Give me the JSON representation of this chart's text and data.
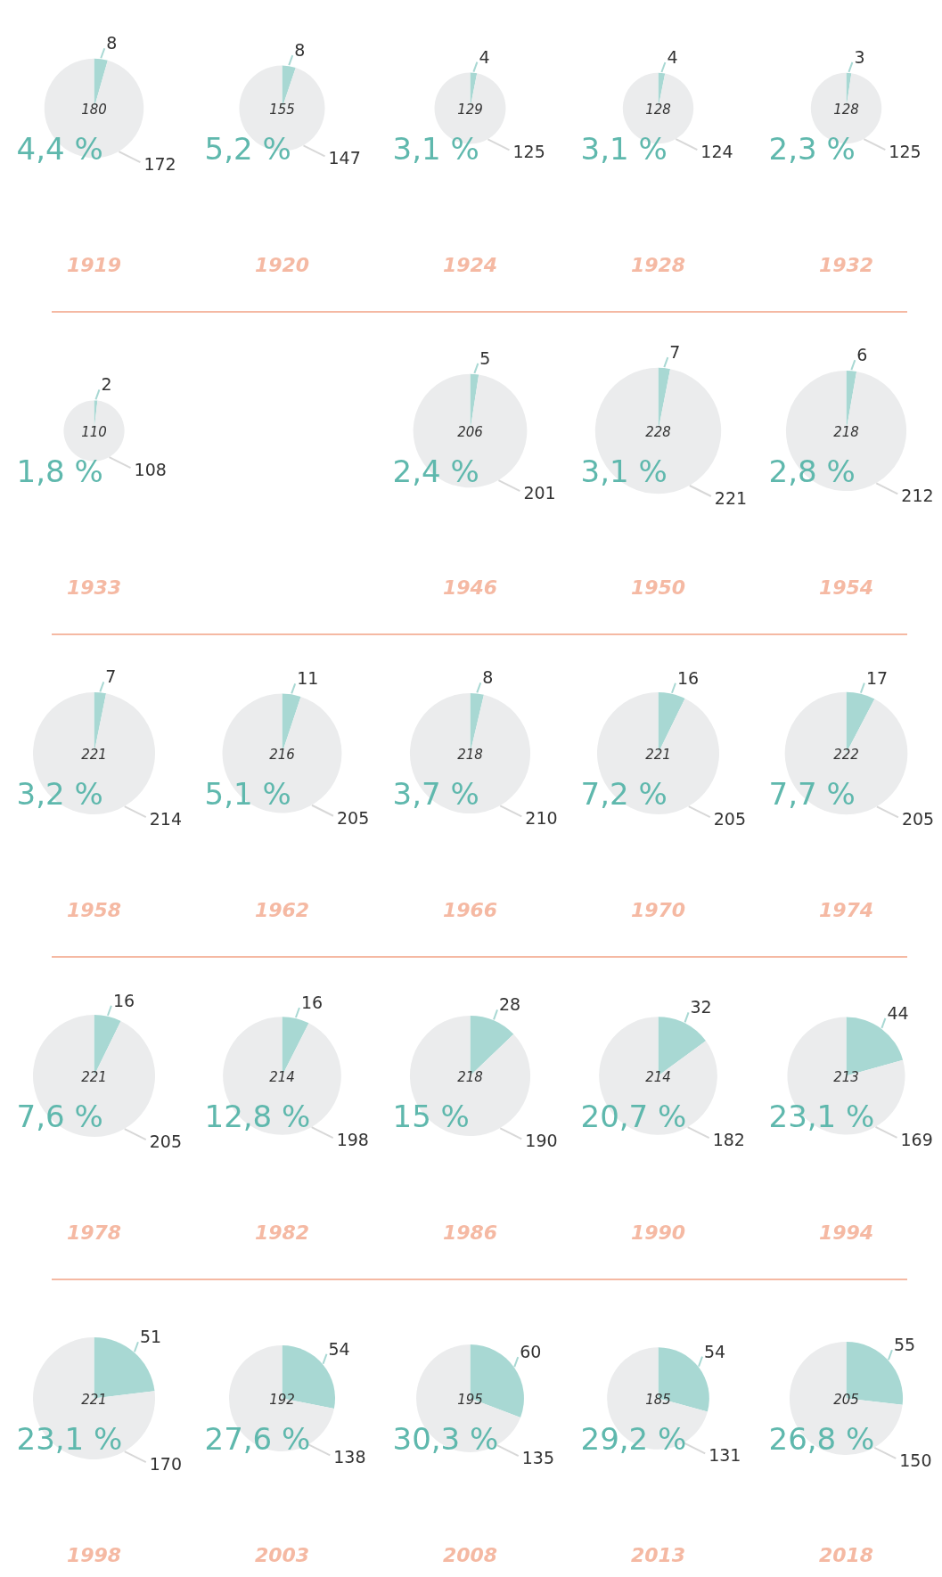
{
  "chart_data": [
    {
      "type": "pie",
      "title": "1919",
      "categories": [
        null,
        null
      ],
      "values": [
        8,
        172
      ],
      "colors": [
        "#a8d8d3",
        "#ebeced"
      ],
      "data_labels": true,
      "annotations": [
        "180",
        "4,4 %"
      ]
    },
    {
      "type": "pie",
      "title": "1920",
      "categories": [
        null,
        null
      ],
      "values": [
        8,
        147
      ],
      "colors": [
        "#a8d8d3",
        "#ebeced"
      ],
      "data_labels": true,
      "annotations": [
        "155",
        "5,2 %"
      ]
    },
    {
      "type": "pie",
      "title": "1924",
      "categories": [
        null,
        null
      ],
      "values": [
        4,
        125
      ],
      "colors": [
        "#a8d8d3",
        "#ebeced"
      ],
      "data_labels": true,
      "annotations": [
        "129",
        "3,1 %"
      ]
    },
    {
      "type": "pie",
      "title": "1928",
      "categories": [
        null,
        null
      ],
      "values": [
        4,
        124
      ],
      "colors": [
        "#a8d8d3",
        "#ebeced"
      ],
      "data_labels": true,
      "annotations": [
        "128",
        "3,1 %"
      ]
    },
    {
      "type": "pie",
      "title": "1932",
      "categories": [
        null,
        null
      ],
      "values": [
        3,
        125
      ],
      "colors": [
        "#a8d8d3",
        "#ebeced"
      ],
      "data_labels": true,
      "annotations": [
        "128",
        "2,3 %"
      ]
    },
    {
      "type": "pie",
      "title": "1933",
      "categories": [
        null,
        null
      ],
      "values": [
        2,
        108
      ],
      "colors": [
        "#a8d8d3",
        "#ebeced"
      ],
      "data_labels": true,
      "annotations": [
        "110",
        "1,8 %"
      ]
    },
    {
      "type": "pie",
      "title": "1946",
      "categories": [
        null,
        null
      ],
      "values": [
        5,
        201
      ],
      "colors": [
        "#a8d8d3",
        "#ebeced"
      ],
      "data_labels": true,
      "annotations": [
        "206",
        "2,4 %"
      ]
    },
    {
      "type": "pie",
      "title": "1950",
      "categories": [
        null,
        null
      ],
      "values": [
        7,
        221
      ],
      "colors": [
        "#a8d8d3",
        "#ebeced"
      ],
      "data_labels": true,
      "annotations": [
        "228",
        "3,1 %"
      ]
    },
    {
      "type": "pie",
      "title": "1954",
      "categories": [
        null,
        null
      ],
      "values": [
        6,
        212
      ],
      "colors": [
        "#a8d8d3",
        "#ebeced"
      ],
      "data_labels": true,
      "annotations": [
        "218",
        "2,8 %"
      ]
    },
    {
      "type": "pie",
      "title": "1958",
      "categories": [
        null,
        null
      ],
      "values": [
        7,
        214
      ],
      "colors": [
        "#a8d8d3",
        "#ebeced"
      ],
      "data_labels": true,
      "annotations": [
        "221",
        "3,2 %"
      ]
    },
    {
      "type": "pie",
      "title": "1962",
      "categories": [
        null,
        null
      ],
      "values": [
        11,
        205
      ],
      "colors": [
        "#a8d8d3",
        "#ebeced"
      ],
      "data_labels": true,
      "annotations": [
        "216",
        "5,1 %"
      ]
    },
    {
      "type": "pie",
      "title": "1966",
      "categories": [
        null,
        null
      ],
      "values": [
        8,
        210
      ],
      "colors": [
        "#a8d8d3",
        "#ebeced"
      ],
      "data_labels": true,
      "annotations": [
        "218",
        "3,7 %"
      ]
    },
    {
      "type": "pie",
      "title": "1970",
      "categories": [
        null,
        null
      ],
      "values": [
        16,
        205
      ],
      "colors": [
        "#a8d8d3",
        "#ebeced"
      ],
      "data_labels": true,
      "annotations": [
        "221",
        "7,2 %"
      ]
    },
    {
      "type": "pie",
      "title": "1974",
      "categories": [
        null,
        null
      ],
      "values": [
        17,
        205
      ],
      "colors": [
        "#a8d8d3",
        "#ebeced"
      ],
      "data_labels": true,
      "annotations": [
        "222",
        "7,7 %"
      ]
    },
    {
      "type": "pie",
      "title": "1978",
      "categories": [
        null,
        null
      ],
      "values": [
        16,
        205
      ],
      "colors": [
        "#a8d8d3",
        "#ebeced"
      ],
      "data_labels": true,
      "annotations": [
        "221",
        "7,6 %"
      ]
    },
    {
      "type": "pie",
      "title": "1982",
      "categories": [
        null,
        null
      ],
      "values": [
        16,
        198
      ],
      "colors": [
        "#a8d8d3",
        "#ebeced"
      ],
      "data_labels": true,
      "annotations": [
        "214",
        "12,8 %"
      ]
    },
    {
      "type": "pie",
      "title": "1986",
      "categories": [
        null,
        null
      ],
      "values": [
        28,
        190
      ],
      "colors": [
        "#a8d8d3",
        "#ebeced"
      ],
      "data_labels": true,
      "annotations": [
        "218",
        "15 %"
      ]
    },
    {
      "type": "pie",
      "title": "1990",
      "categories": [
        null,
        null
      ],
      "values": [
        32,
        182
      ],
      "colors": [
        "#a8d8d3",
        "#ebeced"
      ],
      "data_labels": true,
      "annotations": [
        "214",
        "20,7 %"
      ]
    },
    {
      "type": "pie",
      "title": "1994",
      "categories": [
        null,
        null
      ],
      "values": [
        44,
        169
      ],
      "colors": [
        "#a8d8d3",
        "#ebeced"
      ],
      "data_labels": true,
      "annotations": [
        "213",
        "23,1 %"
      ]
    },
    {
      "type": "pie",
      "title": "1998",
      "categories": [
        null,
        null
      ],
      "values": [
        51,
        170
      ],
      "colors": [
        "#a8d8d3",
        "#ebeced"
      ],
      "data_labels": true,
      "annotations": [
        "221",
        "23,1 %"
      ]
    },
    {
      "type": "pie",
      "title": "2003",
      "categories": [
        null,
        null
      ],
      "values": [
        54,
        138
      ],
      "colors": [
        "#a8d8d3",
        "#ebeced"
      ],
      "data_labels": true,
      "annotations": [
        "192",
        "27,6 %"
      ]
    },
    {
      "type": "pie",
      "title": "2008",
      "categories": [
        null,
        null
      ],
      "values": [
        60,
        135
      ],
      "colors": [
        "#a8d8d3",
        "#ebeced"
      ],
      "data_labels": true,
      "annotations": [
        "195",
        "30,3 %"
      ]
    },
    {
      "type": "pie",
      "title": "2013",
      "categories": [
        null,
        null
      ],
      "values": [
        54,
        131
      ],
      "colors": [
        "#a8d8d3",
        "#ebeced"
      ],
      "data_labels": true,
      "annotations": [
        "185",
        "29,2 %"
      ]
    },
    {
      "type": "pie",
      "title": "2018",
      "categories": [
        null,
        null
      ],
      "values": [
        55,
        150
      ],
      "colors": [
        "#a8d8d3",
        "#ebeced"
      ],
      "data_labels": true,
      "annotations": [
        "205",
        "26,8 %"
      ]
    }
  ]
}
